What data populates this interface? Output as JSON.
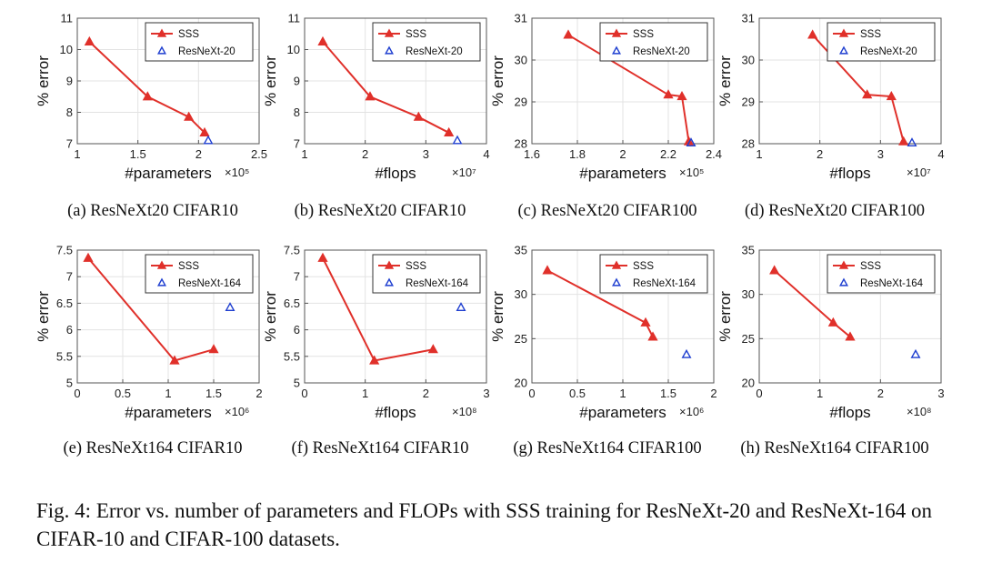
{
  "figure_caption": "Fig. 4: Error vs. number of parameters and FLOPs with SSS training for ResNeXt-20 and ResNeXt-164 on CIFAR-10 and CIFAR-100 datasets.",
  "colors": {
    "sss": "#e0302a",
    "baseline": "#1f3fd0",
    "axis": "#555555",
    "grid": "#e3e3e3"
  },
  "chart_data": [
    {
      "type": "line",
      "subcaption": "(a) ResNeXt20 CIFAR10",
      "xlabel": "#parameters",
      "ylabel": "% error",
      "x_exponent": "×10⁵",
      "xlim": [
        1,
        2.5
      ],
      "ylim": [
        7,
        11
      ],
      "xticks": [
        "1",
        "1.5",
        "2",
        "2.5"
      ],
      "xtick_values": [
        1,
        1.5,
        2,
        2.5
      ],
      "yticks": [
        "7",
        "8",
        "9",
        "10",
        "11"
      ],
      "ytick_values": [
        7,
        8,
        9,
        10,
        11
      ],
      "series": [
        {
          "name": "SSS",
          "x": [
            1.1,
            1.58,
            1.92,
            2.05
          ],
          "y": [
            10.25,
            8.5,
            7.85,
            7.35
          ]
        },
        {
          "name": "ResNeXt-20",
          "x": [
            2.08
          ],
          "y": [
            7.1
          ]
        }
      ]
    },
    {
      "type": "line",
      "subcaption": "(b) ResNeXt20 CIFAR10",
      "xlabel": "#flops",
      "ylabel": "% error",
      "x_exponent": "×10⁷",
      "xlim": [
        1,
        4
      ],
      "ylim": [
        7,
        11
      ],
      "xticks": [
        "1",
        "2",
        "3",
        "4"
      ],
      "xtick_values": [
        1,
        2,
        3,
        4
      ],
      "yticks": [
        "7",
        "8",
        "9",
        "10",
        "11"
      ],
      "ytick_values": [
        7,
        8,
        9,
        10,
        11
      ],
      "series": [
        {
          "name": "SSS",
          "x": [
            1.3,
            2.08,
            2.88,
            3.38
          ],
          "y": [
            10.25,
            8.5,
            7.85,
            7.35
          ]
        },
        {
          "name": "ResNeXt-20",
          "x": [
            3.52
          ],
          "y": [
            7.1
          ]
        }
      ]
    },
    {
      "type": "line",
      "subcaption": "(c) ResNeXt20 CIFAR100",
      "xlabel": "#parameters",
      "ylabel": "% error",
      "x_exponent": "×10⁵",
      "xlim": [
        1.6,
        2.4
      ],
      "ylim": [
        28,
        31
      ],
      "xticks": [
        "1.6",
        "1.8",
        "2",
        "2.2",
        "2.4"
      ],
      "xtick_values": [
        1.6,
        1.8,
        2,
        2.2,
        2.4
      ],
      "yticks": [
        "28",
        "29",
        "30",
        "31"
      ],
      "ytick_values": [
        28,
        29,
        30,
        31
      ],
      "series": [
        {
          "name": "SSS",
          "x": [
            1.76,
            2.2,
            2.26,
            2.29
          ],
          "y": [
            30.6,
            29.17,
            29.13,
            28.05
          ]
        },
        {
          "name": "ResNeXt-20",
          "x": [
            2.3
          ],
          "y": [
            28.02
          ]
        }
      ]
    },
    {
      "type": "line",
      "subcaption": "(d) ResNeXt20 CIFAR100",
      "xlabel": "#flops",
      "ylabel": "% error",
      "x_exponent": "×10⁷",
      "xlim": [
        1,
        4
      ],
      "ylim": [
        28,
        31
      ],
      "xticks": [
        "1",
        "2",
        "3",
        "4"
      ],
      "xtick_values": [
        1,
        2,
        3,
        4
      ],
      "yticks": [
        "28",
        "29",
        "30",
        "31"
      ],
      "ytick_values": [
        28,
        29,
        30,
        31
      ],
      "series": [
        {
          "name": "SSS",
          "x": [
            1.88,
            2.78,
            3.18,
            3.38
          ],
          "y": [
            30.6,
            29.17,
            29.13,
            28.05
          ]
        },
        {
          "name": "ResNeXt-20",
          "x": [
            3.52
          ],
          "y": [
            28.02
          ]
        }
      ]
    },
    {
      "type": "line",
      "subcaption": "(e) ResNeXt164 CIFAR10",
      "xlabel": "#parameters",
      "ylabel": "% error",
      "x_exponent": "×10⁶",
      "xlim": [
        0,
        2
      ],
      "ylim": [
        5,
        7.5
      ],
      "xticks": [
        "0",
        "0.5",
        "1",
        "1.5",
        "2"
      ],
      "xtick_values": [
        0,
        0.5,
        1,
        1.5,
        2
      ],
      "yticks": [
        "5",
        "5.5",
        "6",
        "6.5",
        "7",
        "7.5"
      ],
      "ytick_values": [
        5,
        5.5,
        6,
        6.5,
        7,
        7.5
      ],
      "series": [
        {
          "name": "SSS",
          "x": [
            0.12,
            1.07,
            1.5
          ],
          "y": [
            7.35,
            5.42,
            5.63
          ]
        },
        {
          "name": "ResNeXt-164",
          "x": [
            1.68
          ],
          "y": [
            6.42
          ]
        }
      ]
    },
    {
      "type": "line",
      "subcaption": "(f) ResNeXt164 CIFAR10",
      "xlabel": "#flops",
      "ylabel": "% error",
      "x_exponent": "×10⁸",
      "xlim": [
        0,
        3
      ],
      "ylim": [
        5,
        7.5
      ],
      "xticks": [
        "0",
        "1",
        "2",
        "3"
      ],
      "xtick_values": [
        0,
        1,
        2,
        3
      ],
      "yticks": [
        "5",
        "5.5",
        "6",
        "6.5",
        "7",
        "7.5"
      ],
      "ytick_values": [
        5,
        5.5,
        6,
        6.5,
        7,
        7.5
      ],
      "series": [
        {
          "name": "SSS",
          "x": [
            0.3,
            1.15,
            2.12
          ],
          "y": [
            7.35,
            5.42,
            5.63
          ]
        },
        {
          "name": "ResNeXt-164",
          "x": [
            2.58
          ],
          "y": [
            6.42
          ]
        }
      ]
    },
    {
      "type": "line",
      "subcaption": "(g) ResNeXt164 CIFAR100",
      "xlabel": "#parameters",
      "ylabel": "% error",
      "x_exponent": "×10⁶",
      "xlim": [
        0,
        2
      ],
      "ylim": [
        20,
        35
      ],
      "xticks": [
        "0",
        "0.5",
        "1",
        "1.5",
        "2"
      ],
      "xtick_values": [
        0,
        0.5,
        1,
        1.5,
        2
      ],
      "yticks": [
        "20",
        "25",
        "30",
        "35"
      ],
      "ytick_values": [
        20,
        25,
        30,
        35
      ],
      "series": [
        {
          "name": "SSS",
          "x": [
            0.17,
            1.25,
            1.33
          ],
          "y": [
            32.7,
            26.8,
            25.2
          ]
        },
        {
          "name": "ResNeXt-164",
          "x": [
            1.7
          ],
          "y": [
            23.2
          ]
        }
      ]
    },
    {
      "type": "line",
      "subcaption": "(h) ResNeXt164 CIFAR100",
      "xlabel": "#flops",
      "ylabel": "% error",
      "x_exponent": "×10⁸",
      "xlim": [
        0,
        3
      ],
      "ylim": [
        20,
        35
      ],
      "xticks": [
        "0",
        "1",
        "2",
        "3"
      ],
      "xtick_values": [
        0,
        1,
        2,
        3
      ],
      "yticks": [
        "20",
        "25",
        "30",
        "35"
      ],
      "ytick_values": [
        20,
        25,
        30,
        35
      ],
      "series": [
        {
          "name": "SSS",
          "x": [
            0.25,
            1.22,
            1.5
          ],
          "y": [
            32.7,
            26.8,
            25.2
          ]
        },
        {
          "name": "ResNeXt-164",
          "x": [
            2.58
          ],
          "y": [
            23.2
          ]
        }
      ]
    }
  ]
}
